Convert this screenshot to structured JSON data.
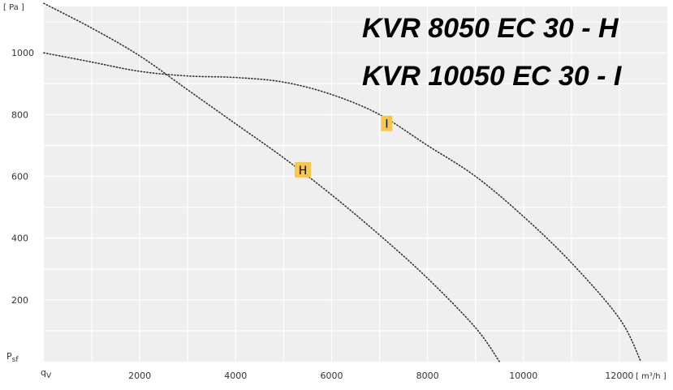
{
  "chart_data": {
    "type": "line",
    "title_lines": [
      "KVR 8050 EC 30 - H",
      "KVR 10050 EC 30 - I"
    ],
    "y_unit_label": "[ Pa ]",
    "x_unit_label": "[ m³/h ]",
    "y_axis_symbol": "P",
    "y_axis_subscript": "sf",
    "x_axis_symbol": "q",
    "x_axis_subscript": "V",
    "xlim": [
      0,
      13000
    ],
    "ylim": [
      0,
      1150
    ],
    "x_ticks": [
      2000,
      4000,
      6000,
      8000,
      10000,
      12000
    ],
    "x_tick_labels": [
      "2000",
      "4000",
      "6000",
      "8000",
      "10000",
      "12000"
    ],
    "y_ticks": [
      200,
      400,
      600,
      800,
      1000
    ],
    "y_tick_labels": [
      "200",
      "400",
      "600",
      "800",
      "1000"
    ],
    "grid": true,
    "series": [
      {
        "name": "H",
        "x": [
          0,
          1000,
          2000,
          3000,
          4000,
          5000,
          6000,
          7000,
          8000,
          9000,
          9500
        ],
        "y": [
          1160,
          1080,
          990,
          880,
          770,
          660,
          540,
          410,
          270,
          110,
          0
        ]
      },
      {
        "name": "I",
        "x": [
          0,
          1000,
          2000,
          3000,
          4000,
          5000,
          6000,
          7000,
          8000,
          9000,
          10000,
          11000,
          12000,
          12450
        ],
        "y": [
          1000,
          970,
          940,
          925,
          920,
          905,
          865,
          800,
          700,
          600,
          470,
          320,
          140,
          0
        ]
      }
    ],
    "markers": [
      {
        "label": "H",
        "x": 5400,
        "y": 620
      },
      {
        "label": "I",
        "x": 7150,
        "y": 770
      }
    ],
    "colors": {
      "plot_background": "#efefef",
      "grid": "#ffffff",
      "curve": "#333333",
      "marker_fill": "#f5c84c"
    }
  }
}
